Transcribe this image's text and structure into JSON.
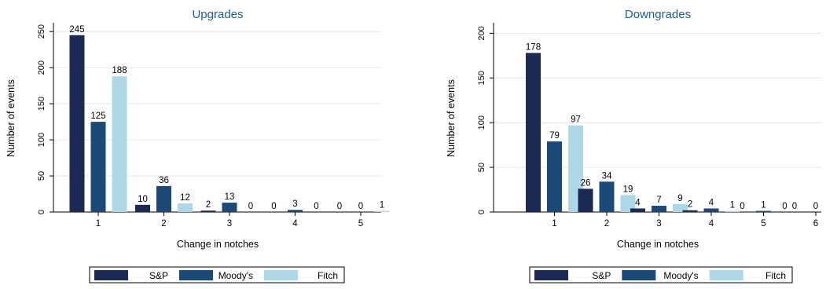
{
  "colors": {
    "S&P": "#1a2a55",
    "Moody's": "#1b4a78",
    "Fitch": "#add8e6",
    "title": "#1f5d8f"
  },
  "legend": {
    "placement": "bottom-center",
    "entries": [
      "S&P",
      "Moody's",
      "Fitch"
    ]
  },
  "chart_data": [
    {
      "type": "bar",
      "title": "Upgrades",
      "xlabel": "Change in notches",
      "ylabel": "Number of events",
      "categories": [
        "1",
        "2",
        "3",
        "4",
        "5"
      ],
      "ylim": [
        0,
        260
      ],
      "yticks": [
        0,
        50,
        100,
        150,
        200,
        250
      ],
      "grid": true,
      "series": [
        {
          "name": "S&P",
          "values": [
            245,
            10,
            2,
            0,
            0
          ]
        },
        {
          "name": "Moody's",
          "values": [
            125,
            36,
            13,
            3,
            0
          ]
        },
        {
          "name": "Fitch",
          "values": [
            188,
            12,
            0,
            0,
            1
          ]
        }
      ]
    },
    {
      "type": "bar",
      "title": "Downgrades",
      "xlabel": "Change in notches",
      "ylabel": "Number of events",
      "categories": [
        "1",
        "2",
        "3",
        "4",
        "5",
        "6"
      ],
      "ylim": [
        0,
        210
      ],
      "yticks": [
        0,
        50,
        100,
        150,
        200
      ],
      "grid": true,
      "series": [
        {
          "name": "S&P",
          "values": [
            178,
            26,
            4,
            2,
            0,
            0
          ]
        },
        {
          "name": "Moody's",
          "values": [
            79,
            34,
            7,
            4,
            1,
            0
          ]
        },
        {
          "name": "Fitch",
          "values": [
            97,
            19,
            9,
            1,
            0,
            1
          ]
        }
      ]
    }
  ]
}
